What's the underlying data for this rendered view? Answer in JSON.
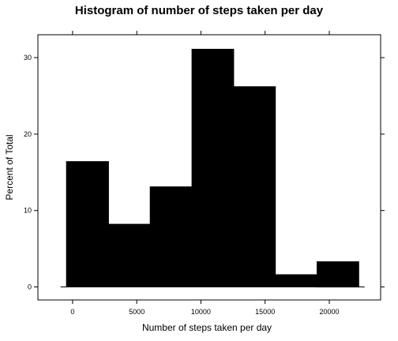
{
  "chart_data": {
    "type": "bar",
    "title": "Histogram of number of steps taken per day",
    "xlabel": "Number of steps taken per day",
    "ylabel": "Percent of Total",
    "xlim": [
      -2700,
      24000
    ],
    "ylim": [
      -1.7,
      33.0
    ],
    "x_ticks": [
      0,
      5000,
      10000,
      15000,
      20000
    ],
    "y_ticks": [
      0,
      10,
      20,
      30
    ],
    "bins": [
      {
        "start": -470,
        "end": 2800,
        "value": 16.4
      },
      {
        "start": 2800,
        "end": 6050,
        "value": 8.2
      },
      {
        "start": 6050,
        "end": 9300,
        "value": 13.1
      },
      {
        "start": 9300,
        "end": 12550,
        "value": 31.1
      },
      {
        "start": 12550,
        "end": 15800,
        "value": 26.2
      },
      {
        "start": 15800,
        "end": 19050,
        "value": 1.6
      },
      {
        "start": 19050,
        "end": 22300,
        "value": 3.3
      }
    ],
    "bar_color": "#000000",
    "grid": false,
    "legend": "none"
  }
}
